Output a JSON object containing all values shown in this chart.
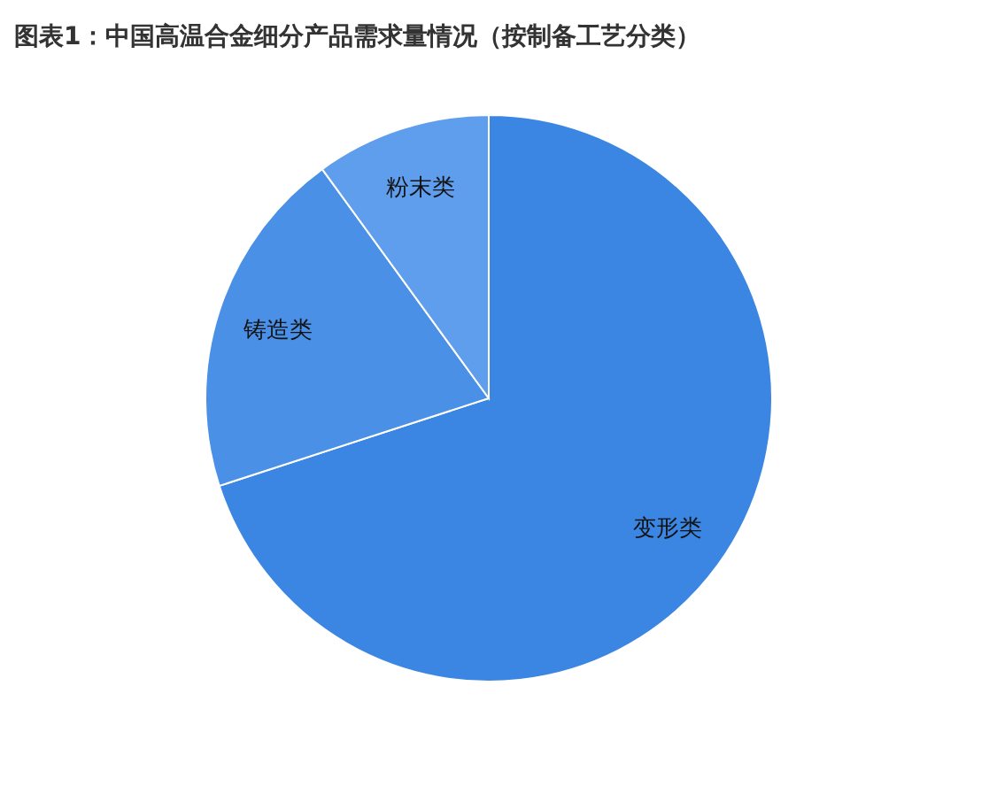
{
  "chart_data": {
    "type": "pie",
    "title": "图表1：中国高温合金细分产品需求量情况（按制备工艺分类）",
    "categories": [
      "变形类",
      "铸造类",
      "粉末类"
    ],
    "values": [
      70,
      20,
      10
    ],
    "colors": [
      "#3a86e2",
      "#4a90e6",
      "#5f9ded"
    ],
    "legend": false
  }
}
